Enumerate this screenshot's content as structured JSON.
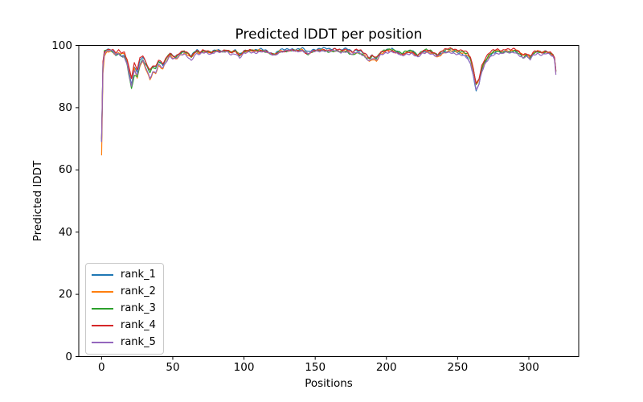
{
  "figure": {
    "background": "#ffffff"
  },
  "chart_data": {
    "type": "line",
    "title": "Predicted lDDT per position",
    "xlabel": "Positions",
    "ylabel": "Predicted lDDT",
    "xlim": [
      -16,
      335
    ],
    "ylim": [
      0,
      100
    ],
    "xticks": [
      0,
      50,
      100,
      150,
      200,
      250,
      300
    ],
    "yticks": [
      0,
      20,
      40,
      60,
      80,
      100
    ],
    "n_points": 320,
    "grid": false,
    "legend_position": "lower left",
    "axis_color": "#000000",
    "y_max_clamp": 99.5,
    "base_keypoints": [
      [
        0,
        68
      ],
      [
        1,
        93
      ],
      [
        2,
        97
      ],
      [
        4,
        98.2
      ],
      [
        6,
        98.4
      ],
      [
        8,
        98
      ],
      [
        10,
        97
      ],
      [
        12,
        97.6
      ],
      [
        14,
        96.8
      ],
      [
        16,
        96.9
      ],
      [
        18,
        94.5
      ],
      [
        21,
        87.8
      ],
      [
        23,
        92.8
      ],
      [
        25,
        91.2
      ],
      [
        27,
        94.8
      ],
      [
        29,
        95.8
      ],
      [
        31,
        93.8
      ],
      [
        34,
        90.8
      ],
      [
        36,
        92.6
      ],
      [
        38,
        92.2
      ],
      [
        40,
        94.5
      ],
      [
        43,
        93.4
      ],
      [
        46,
        95.8
      ],
      [
        48,
        97.1
      ],
      [
        50,
        96.3
      ],
      [
        52,
        96.1
      ],
      [
        55,
        97.3
      ],
      [
        58,
        97.9
      ],
      [
        61,
        97.1
      ],
      [
        63,
        96.2
      ],
      [
        65,
        97.6
      ],
      [
        67,
        98.2
      ],
      [
        69,
        97.7
      ],
      [
        71,
        98.2
      ],
      [
        74,
        98.0
      ],
      [
        77,
        97.6
      ],
      [
        80,
        98.3
      ],
      [
        84,
        98.1
      ],
      [
        88,
        98.4
      ],
      [
        91,
        97.7
      ],
      [
        94,
        98.3
      ],
      [
        97,
        96.9
      ],
      [
        100,
        98.2
      ],
      [
        104,
        98.5
      ],
      [
        108,
        98.3
      ],
      [
        112,
        98.6
      ],
      [
        116,
        98.2
      ],
      [
        119,
        97.4
      ],
      [
        122,
        97.2
      ],
      [
        125,
        98.3
      ],
      [
        129,
        98.5
      ],
      [
        133,
        98.7
      ],
      [
        137,
        98.5
      ],
      [
        141,
        98.8
      ],
      [
        145,
        97.6
      ],
      [
        148,
        98.4
      ],
      [
        152,
        98.6
      ],
      [
        156,
        98.8
      ],
      [
        160,
        98.5
      ],
      [
        164,
        98.7
      ],
      [
        168,
        98.3
      ],
      [
        172,
        98.6
      ],
      [
        176,
        97.6
      ],
      [
        179,
        98.2
      ],
      [
        182,
        97.8
      ],
      [
        185,
        96.9
      ],
      [
        188,
        95.5
      ],
      [
        190,
        96.4
      ],
      [
        193,
        95.7
      ],
      [
        196,
        97.5
      ],
      [
        200,
        98.3
      ],
      [
        204,
        98.6
      ],
      [
        208,
        97.9
      ],
      [
        211,
        97.2
      ],
      [
        214,
        97.9
      ],
      [
        218,
        98.2
      ],
      [
        222,
        96.9
      ],
      [
        225,
        98.0
      ],
      [
        228,
        98.4
      ],
      [
        231,
        98.1
      ],
      [
        234,
        97.4
      ],
      [
        236,
        96.9
      ],
      [
        239,
        98.0
      ],
      [
        242,
        98.4
      ],
      [
        245,
        98.6
      ],
      [
        248,
        98.3
      ],
      [
        251,
        98.0
      ],
      [
        254,
        97.7
      ],
      [
        257,
        96.9
      ],
      [
        259,
        95.2
      ],
      [
        261,
        91.8
      ],
      [
        263,
        87.2
      ],
      [
        265,
        88.8
      ],
      [
        267,
        92.6
      ],
      [
        269,
        94.6
      ],
      [
        272,
        96.6
      ],
      [
        275,
        97.7
      ],
      [
        278,
        98.1
      ],
      [
        281,
        97.7
      ],
      [
        284,
        98.2
      ],
      [
        287,
        97.9
      ],
      [
        290,
        98.3
      ],
      [
        293,
        97.6
      ],
      [
        296,
        96.5
      ],
      [
        298,
        97.1
      ],
      [
        301,
        96.0
      ],
      [
        303,
        97.3
      ],
      [
        306,
        97.9
      ],
      [
        309,
        97.4
      ],
      [
        312,
        97.8
      ],
      [
        315,
        97.3
      ],
      [
        317,
        96.6
      ],
      [
        318,
        95.5
      ],
      [
        319,
        91.2
      ]
    ],
    "series": [
      {
        "name": "rank_1",
        "color": "#1f77b4",
        "deviation_keypoints": [
          [
            0,
            1
          ],
          [
            4,
            0.3
          ],
          [
            18,
            -0.3
          ],
          [
            21,
            -0.6
          ],
          [
            24,
            0.4
          ],
          [
            34,
            0.9
          ],
          [
            46,
            0.3
          ],
          [
            100,
            0.1
          ],
          [
            188,
            0.4
          ],
          [
            257,
            -0.6
          ],
          [
            261,
            -1.4
          ],
          [
            263,
            -2.1
          ],
          [
            266,
            -0.8
          ],
          [
            270,
            -0.2
          ],
          [
            300,
            0.2
          ],
          [
            319,
            0.3
          ]
        ]
      },
      {
        "name": "rank_2",
        "color": "#ff7f0e",
        "deviation_keypoints": [
          [
            0,
            -3.5
          ],
          [
            2,
            -0.5
          ],
          [
            18,
            0.6
          ],
          [
            21,
            1.6
          ],
          [
            23,
            0.3
          ],
          [
            25,
            -1.7
          ],
          [
            28,
            -0.9
          ],
          [
            34,
            -1.9
          ],
          [
            38,
            -1
          ],
          [
            43,
            -0.9
          ],
          [
            48,
            -0.3
          ],
          [
            52,
            -0.5
          ],
          [
            80,
            0
          ],
          [
            185,
            -0.4
          ],
          [
            188,
            -0.9
          ],
          [
            193,
            -0.6
          ],
          [
            200,
            0
          ],
          [
            236,
            -0.7
          ],
          [
            260,
            0.2
          ],
          [
            263,
            0.1
          ],
          [
            296,
            0.3
          ],
          [
            310,
            0.2
          ],
          [
            319,
            0.4
          ]
        ]
      },
      {
        "name": "rank_3",
        "color": "#2ca02c",
        "deviation_keypoints": [
          [
            0,
            1.5
          ],
          [
            6,
            0.2
          ],
          [
            18,
            -0.8
          ],
          [
            21,
            -1.7
          ],
          [
            23,
            -2.2
          ],
          [
            25,
            -1.4
          ],
          [
            30,
            -0.3
          ],
          [
            34,
            0.6
          ],
          [
            43,
            0.4
          ],
          [
            60,
            0.1
          ],
          [
            186,
            -0.6
          ],
          [
            188,
            0.3
          ],
          [
            240,
            0.1
          ],
          [
            263,
            0.4
          ],
          [
            296,
            -0.3
          ],
          [
            317,
            0.4
          ],
          [
            319,
            0.6
          ]
        ]
      },
      {
        "name": "rank_4",
        "color": "#d62728",
        "deviation_keypoints": [
          [
            0,
            2
          ],
          [
            4,
            0.4
          ],
          [
            18,
            0.9
          ],
          [
            21,
            1.9
          ],
          [
            25,
            1.1
          ],
          [
            31,
            0.8
          ],
          [
            34,
            1.3
          ],
          [
            43,
            0.6
          ],
          [
            60,
            0.2
          ],
          [
            145,
            -0.4
          ],
          [
            188,
            0.6
          ],
          [
            208,
            -0.5
          ],
          [
            257,
            0.7
          ],
          [
            261,
            0.9
          ],
          [
            263,
            0.5
          ],
          [
            267,
            0.9
          ],
          [
            301,
            0.4
          ],
          [
            319,
            0.4
          ]
        ]
      },
      {
        "name": "rank_5",
        "color": "#9467bd",
        "deviation_keypoints": [
          [
            0,
            1
          ],
          [
            4,
            0.2
          ],
          [
            18,
            -0.6
          ],
          [
            21,
            -0.9
          ],
          [
            25,
            -0.9
          ],
          [
            31,
            -0.6
          ],
          [
            34,
            -1.3
          ],
          [
            43,
            -0.6
          ],
          [
            52,
            -0.4
          ],
          [
            63,
            -1.0
          ],
          [
            80,
            -0.2
          ],
          [
            97,
            -0.9
          ],
          [
            120,
            -0.3
          ],
          [
            176,
            -0.5
          ],
          [
            188,
            -0.5
          ],
          [
            211,
            -0.6
          ],
          [
            222,
            -0.8
          ],
          [
            236,
            -0.5
          ],
          [
            263,
            -1.3
          ],
          [
            282,
            -0.3
          ],
          [
            296,
            -0.6
          ],
          [
            301,
            -0.6
          ],
          [
            312,
            -0.3
          ],
          [
            319,
            -0.4
          ]
        ]
      }
    ],
    "noise": {
      "a1": 0.22,
      "f1": 1.7,
      "p1": 2.1,
      "a2": 0.15,
      "f2": 0.41,
      "p2": 1.0
    }
  }
}
